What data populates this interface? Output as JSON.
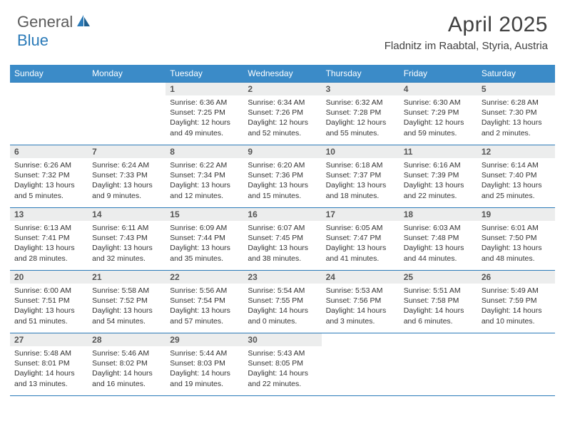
{
  "logo": {
    "text1": "General",
    "text2": "Blue"
  },
  "title": "April 2025",
  "location": "Fladnitz im Raabtal, Styria, Austria",
  "colors": {
    "header_bg": "#3b8bc8",
    "header_text": "#ffffff",
    "border": "#2a7ab8",
    "daynum_bg": "#eceded",
    "logo_gray": "#5a5a5a",
    "logo_blue": "#2a7ab8"
  },
  "weekdays": [
    "Sunday",
    "Monday",
    "Tuesday",
    "Wednesday",
    "Thursday",
    "Friday",
    "Saturday"
  ],
  "grid": [
    [
      null,
      null,
      {
        "n": "1",
        "sr": "6:36 AM",
        "ss": "7:25 PM",
        "dl": "12 hours and 49 minutes."
      },
      {
        "n": "2",
        "sr": "6:34 AM",
        "ss": "7:26 PM",
        "dl": "12 hours and 52 minutes."
      },
      {
        "n": "3",
        "sr": "6:32 AM",
        "ss": "7:28 PM",
        "dl": "12 hours and 55 minutes."
      },
      {
        "n": "4",
        "sr": "6:30 AM",
        "ss": "7:29 PM",
        "dl": "12 hours and 59 minutes."
      },
      {
        "n": "5",
        "sr": "6:28 AM",
        "ss": "7:30 PM",
        "dl": "13 hours and 2 minutes."
      }
    ],
    [
      {
        "n": "6",
        "sr": "6:26 AM",
        "ss": "7:32 PM",
        "dl": "13 hours and 5 minutes."
      },
      {
        "n": "7",
        "sr": "6:24 AM",
        "ss": "7:33 PM",
        "dl": "13 hours and 9 minutes."
      },
      {
        "n": "8",
        "sr": "6:22 AM",
        "ss": "7:34 PM",
        "dl": "13 hours and 12 minutes."
      },
      {
        "n": "9",
        "sr": "6:20 AM",
        "ss": "7:36 PM",
        "dl": "13 hours and 15 minutes."
      },
      {
        "n": "10",
        "sr": "6:18 AM",
        "ss": "7:37 PM",
        "dl": "13 hours and 18 minutes."
      },
      {
        "n": "11",
        "sr": "6:16 AM",
        "ss": "7:39 PM",
        "dl": "13 hours and 22 minutes."
      },
      {
        "n": "12",
        "sr": "6:14 AM",
        "ss": "7:40 PM",
        "dl": "13 hours and 25 minutes."
      }
    ],
    [
      {
        "n": "13",
        "sr": "6:13 AM",
        "ss": "7:41 PM",
        "dl": "13 hours and 28 minutes."
      },
      {
        "n": "14",
        "sr": "6:11 AM",
        "ss": "7:43 PM",
        "dl": "13 hours and 32 minutes."
      },
      {
        "n": "15",
        "sr": "6:09 AM",
        "ss": "7:44 PM",
        "dl": "13 hours and 35 minutes."
      },
      {
        "n": "16",
        "sr": "6:07 AM",
        "ss": "7:45 PM",
        "dl": "13 hours and 38 minutes."
      },
      {
        "n": "17",
        "sr": "6:05 AM",
        "ss": "7:47 PM",
        "dl": "13 hours and 41 minutes."
      },
      {
        "n": "18",
        "sr": "6:03 AM",
        "ss": "7:48 PM",
        "dl": "13 hours and 44 minutes."
      },
      {
        "n": "19",
        "sr": "6:01 AM",
        "ss": "7:50 PM",
        "dl": "13 hours and 48 minutes."
      }
    ],
    [
      {
        "n": "20",
        "sr": "6:00 AM",
        "ss": "7:51 PM",
        "dl": "13 hours and 51 minutes."
      },
      {
        "n": "21",
        "sr": "5:58 AM",
        "ss": "7:52 PM",
        "dl": "13 hours and 54 minutes."
      },
      {
        "n": "22",
        "sr": "5:56 AM",
        "ss": "7:54 PM",
        "dl": "13 hours and 57 minutes."
      },
      {
        "n": "23",
        "sr": "5:54 AM",
        "ss": "7:55 PM",
        "dl": "14 hours and 0 minutes."
      },
      {
        "n": "24",
        "sr": "5:53 AM",
        "ss": "7:56 PM",
        "dl": "14 hours and 3 minutes."
      },
      {
        "n": "25",
        "sr": "5:51 AM",
        "ss": "7:58 PM",
        "dl": "14 hours and 6 minutes."
      },
      {
        "n": "26",
        "sr": "5:49 AM",
        "ss": "7:59 PM",
        "dl": "14 hours and 10 minutes."
      }
    ],
    [
      {
        "n": "27",
        "sr": "5:48 AM",
        "ss": "8:01 PM",
        "dl": "14 hours and 13 minutes."
      },
      {
        "n": "28",
        "sr": "5:46 AM",
        "ss": "8:02 PM",
        "dl": "14 hours and 16 minutes."
      },
      {
        "n": "29",
        "sr": "5:44 AM",
        "ss": "8:03 PM",
        "dl": "14 hours and 19 minutes."
      },
      {
        "n": "30",
        "sr": "5:43 AM",
        "ss": "8:05 PM",
        "dl": "14 hours and 22 minutes."
      },
      null,
      null,
      null
    ]
  ],
  "labels": {
    "sunrise": "Sunrise: ",
    "sunset": "Sunset: ",
    "daylight": "Daylight: "
  }
}
